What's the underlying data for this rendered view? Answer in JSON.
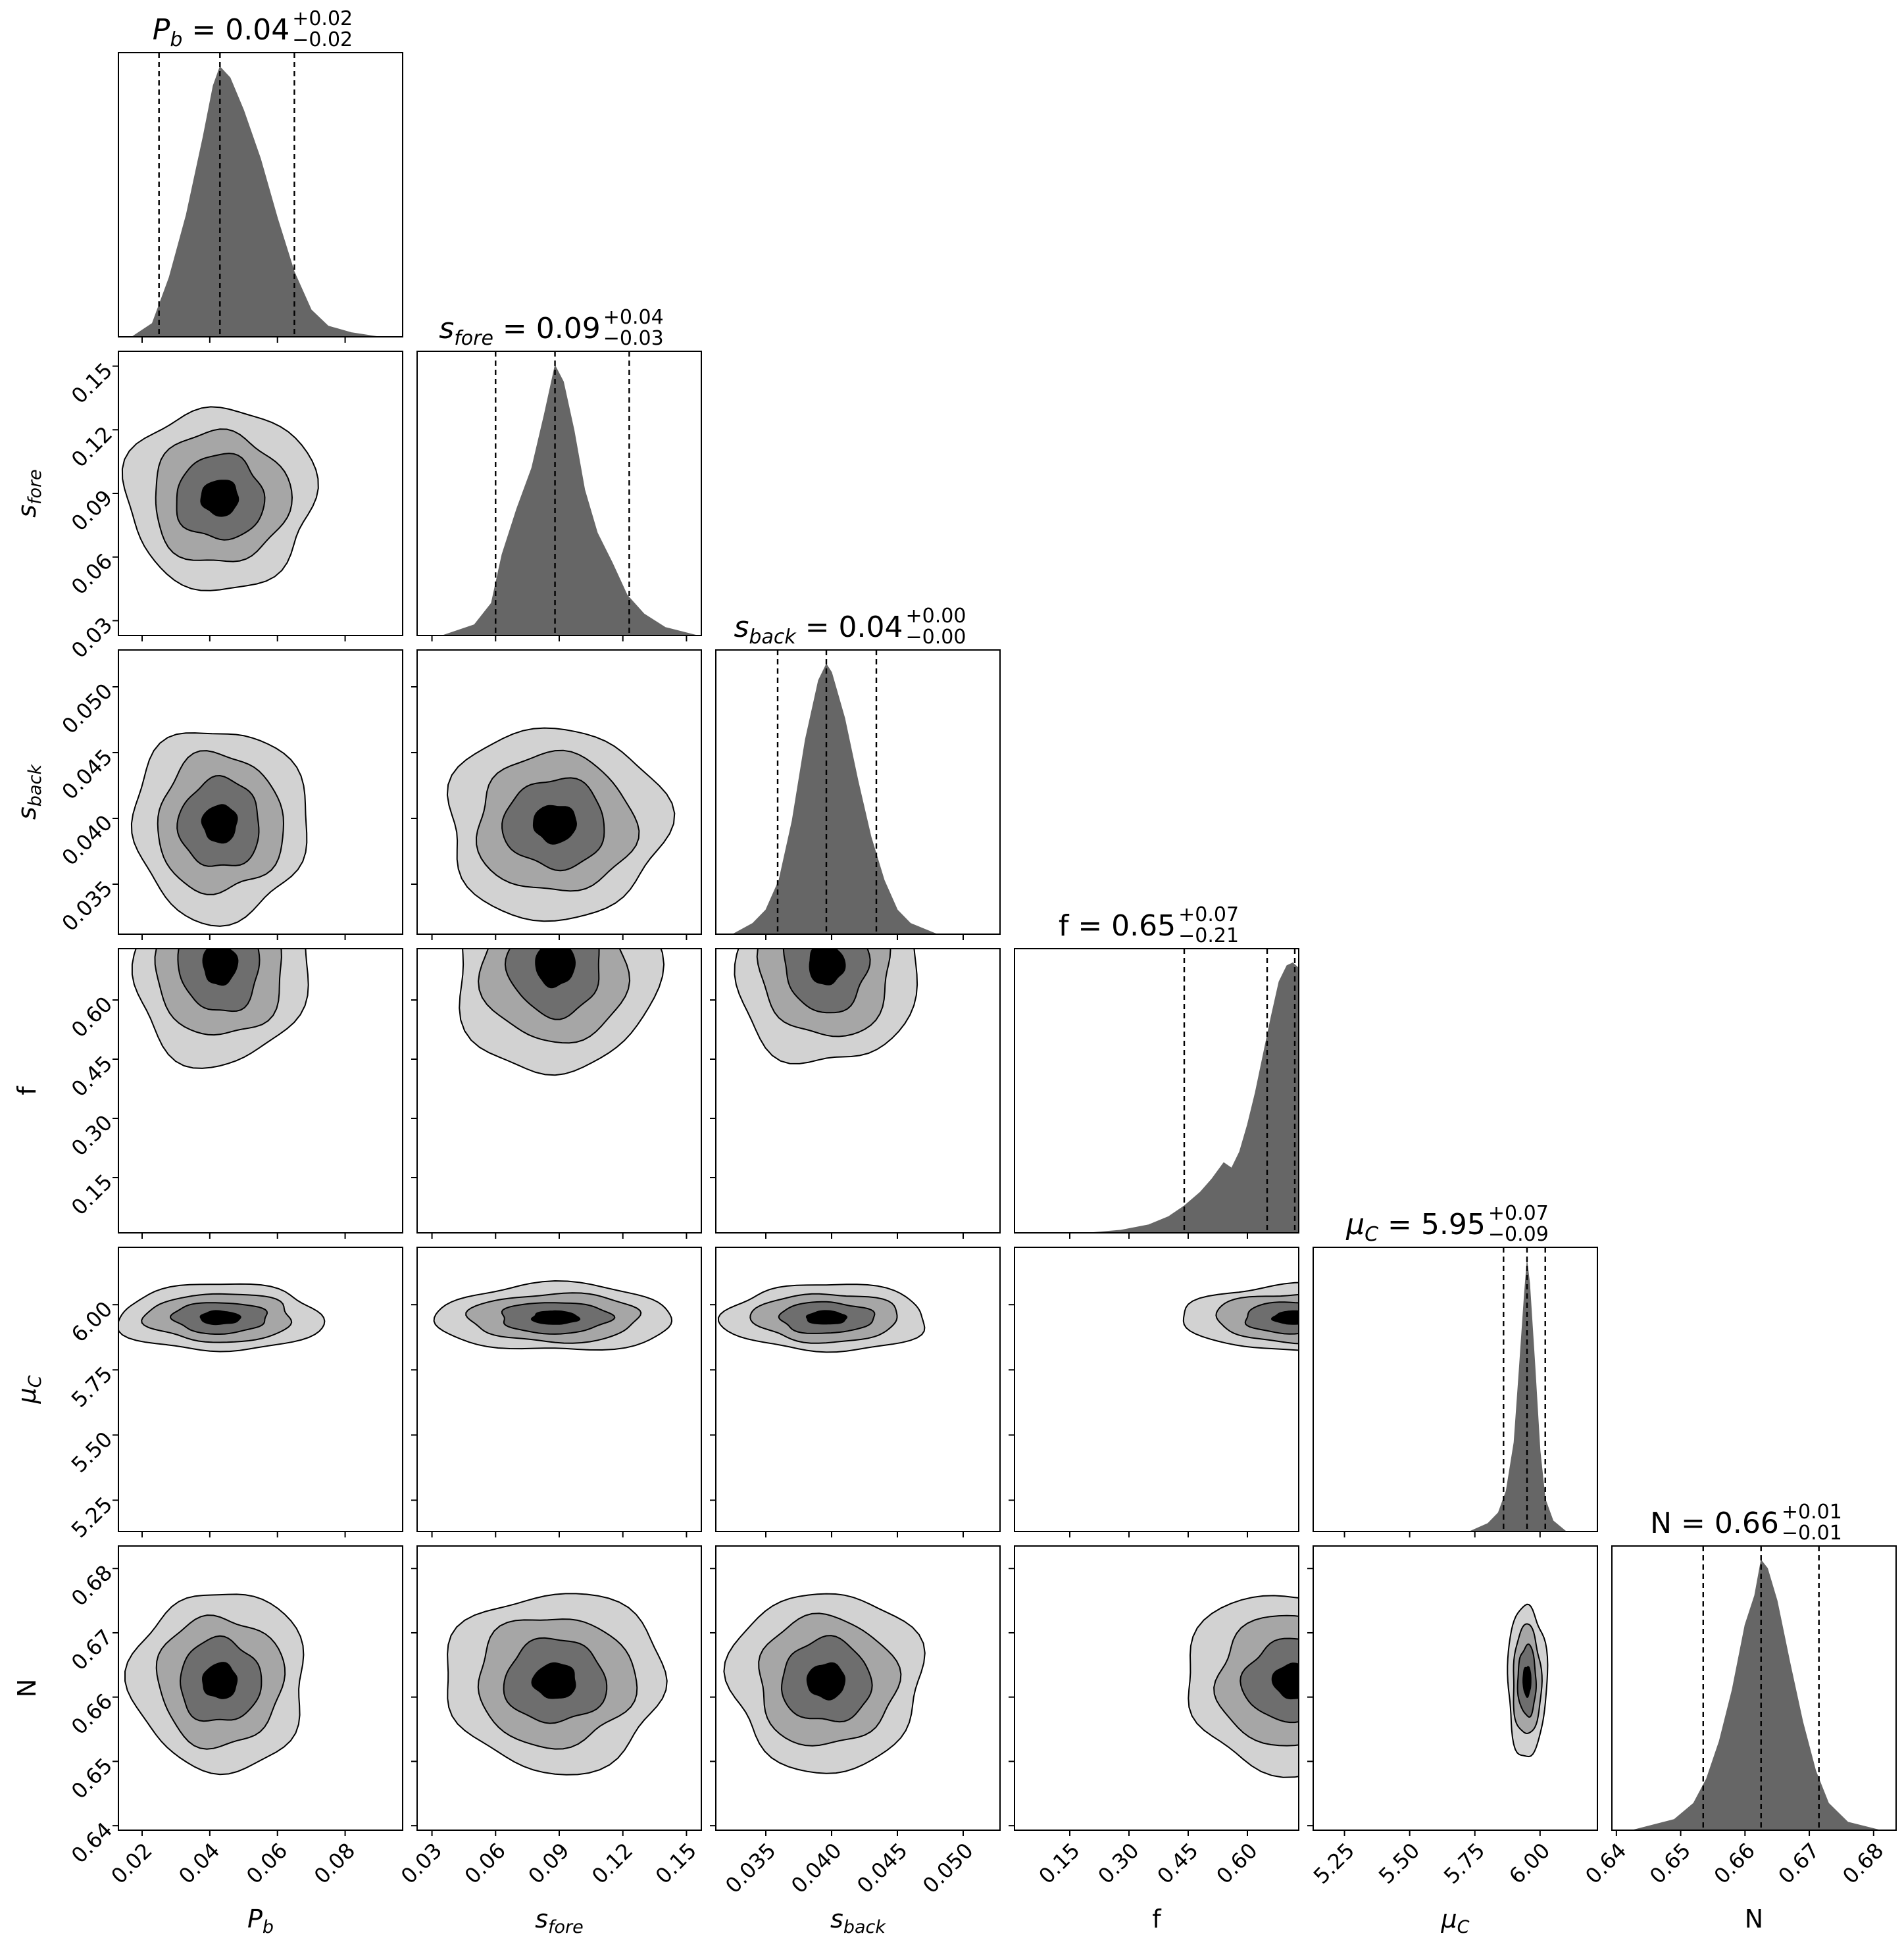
{
  "chart_data": {
    "type": "corner",
    "parameters": [
      {
        "key": "Pb",
        "label": "P",
        "sub": "b",
        "italic": true,
        "median": 0.043,
        "lo": 0.025,
        "hi": 0.065,
        "range": [
          0.013,
          0.097
        ],
        "ticks": [
          0.02,
          0.04,
          0.06,
          0.08
        ],
        "tick_labels": [
          "0.02",
          "0.04",
          "0.06",
          "0.08"
        ],
        "title_value": "0.04",
        "title_plus": "+0.02",
        "title_minus": "−0.02"
      },
      {
        "key": "sfore",
        "label": "s",
        "sub": "fore",
        "italic": true,
        "median": 0.088,
        "lo": 0.06,
        "hi": 0.123,
        "range": [
          0.023,
          0.157
        ],
        "ticks": [
          0.03,
          0.06,
          0.09,
          0.12,
          0.15
        ],
        "tick_labels": [
          "0.03",
          "0.06",
          "0.09",
          "0.12",
          "0.15"
        ],
        "title_value": "0.09",
        "title_plus": "+0.04",
        "title_minus": "−0.03"
      },
      {
        "key": "sback",
        "label": "s",
        "sub": "back",
        "italic": true,
        "median": 0.0396,
        "lo": 0.0359,
        "hi": 0.0434,
        "range": [
          0.0312,
          0.0528
        ],
        "ticks": [
          0.035,
          0.04,
          0.045,
          0.05
        ],
        "tick_labels": [
          "0.035",
          "0.040",
          "0.045",
          "0.050"
        ],
        "title_value": "0.04",
        "title_plus": "+0.00",
        "title_minus": "−0.00"
      },
      {
        "key": "f",
        "label": "f",
        "sub": "",
        "italic": false,
        "median": 0.65,
        "lo": 0.44,
        "hi": 0.72,
        "range": [
          0.01,
          0.73
        ],
        "ticks": [
          0.15,
          0.3,
          0.45,
          0.6
        ],
        "tick_labels": [
          "0.15",
          "0.30",
          "0.45",
          "0.60"
        ],
        "title_value": "0.65",
        "title_plus": "+0.07",
        "title_minus": "−0.21"
      },
      {
        "key": "muC",
        "label": "μ",
        "sub": "C",
        "italic": true,
        "median": 5.95,
        "lo": 5.86,
        "hi": 6.02,
        "range": [
          5.13,
          6.22
        ],
        "ticks": [
          5.25,
          5.5,
          5.75,
          6.0
        ],
        "tick_labels": [
          "5.25",
          "5.50",
          "5.75",
          "6.00"
        ],
        "title_value": "5.95",
        "title_plus": "+0.07",
        "title_minus": "−0.09"
      },
      {
        "key": "N",
        "label": "N",
        "sub": "",
        "italic": false,
        "median": 0.6625,
        "lo": 0.6535,
        "hi": 0.6715,
        "range": [
          0.6393,
          0.6835
        ],
        "ticks": [
          0.64,
          0.65,
          0.66,
          0.67,
          0.68
        ],
        "tick_labels": [
          "0.64",
          "0.65",
          "0.66",
          "0.67",
          "0.68"
        ],
        "title_value": "0.66",
        "title_plus": "+0.01",
        "title_minus": "−0.01"
      }
    ],
    "histograms": [
      {
        "param": "Pb",
        "x": [
          0.017,
          0.023,
          0.028,
          0.033,
          0.038,
          0.041,
          0.043,
          0.046,
          0.05,
          0.055,
          0.06,
          0.065,
          0.07,
          0.075,
          0.082,
          0.09
        ],
        "density": [
          0.0,
          0.05,
          0.22,
          0.45,
          0.74,
          0.93,
          1.0,
          0.96,
          0.84,
          0.66,
          0.44,
          0.24,
          0.1,
          0.04,
          0.015,
          0.0
        ]
      },
      {
        "param": "sfore",
        "x": [
          0.035,
          0.05,
          0.058,
          0.063,
          0.07,
          0.077,
          0.083,
          0.088,
          0.092,
          0.097,
          0.102,
          0.108,
          0.115,
          0.122,
          0.13,
          0.14,
          0.155
        ],
        "density": [
          0.0,
          0.04,
          0.12,
          0.3,
          0.47,
          0.62,
          0.82,
          1.0,
          0.94,
          0.76,
          0.54,
          0.38,
          0.27,
          0.15,
          0.08,
          0.03,
          0.0
        ]
      },
      {
        "param": "sback",
        "x": [
          0.0325,
          0.034,
          0.035,
          0.036,
          0.037,
          0.038,
          0.039,
          0.0396,
          0.04,
          0.041,
          0.042,
          0.043,
          0.044,
          0.045,
          0.046,
          0.048
        ],
        "density": [
          0.0,
          0.04,
          0.09,
          0.2,
          0.42,
          0.72,
          0.94,
          1.0,
          0.97,
          0.8,
          0.57,
          0.36,
          0.2,
          0.09,
          0.04,
          0.0
        ]
      },
      {
        "param": "f",
        "x": [
          0.2,
          0.28,
          0.35,
          0.4,
          0.44,
          0.48,
          0.51,
          0.54,
          0.56,
          0.58,
          0.6,
          0.62,
          0.64,
          0.66,
          0.68,
          0.7,
          0.715,
          0.73
        ],
        "density": [
          0.0,
          0.01,
          0.03,
          0.06,
          0.1,
          0.15,
          0.2,
          0.26,
          0.24,
          0.3,
          0.4,
          0.52,
          0.66,
          0.8,
          0.93,
          0.99,
          1.0,
          0.98
        ]
      },
      {
        "param": "muC",
        "x": [
          5.73,
          5.8,
          5.84,
          5.87,
          5.9,
          5.92,
          5.94,
          5.95,
          5.96,
          5.98,
          6.0,
          6.02,
          6.05,
          6.1
        ],
        "density": [
          0.0,
          0.03,
          0.07,
          0.15,
          0.33,
          0.6,
          0.88,
          1.0,
          0.92,
          0.62,
          0.3,
          0.12,
          0.04,
          0.0
        ]
      },
      {
        "param": "N",
        "x": [
          0.6425,
          0.649,
          0.652,
          0.654,
          0.656,
          0.658,
          0.66,
          0.6615,
          0.6625,
          0.6635,
          0.665,
          0.667,
          0.669,
          0.671,
          0.673,
          0.676,
          0.681
        ],
        "density": [
          0.0,
          0.04,
          0.1,
          0.19,
          0.33,
          0.52,
          0.76,
          0.87,
          1.0,
          0.97,
          0.85,
          0.62,
          0.4,
          0.22,
          0.1,
          0.03,
          0.0
        ]
      }
    ],
    "contour_levels": [
      "outer",
      "second",
      "third",
      "peak"
    ],
    "contour_fill_colors": [
      "#d2d2d2",
      "#a6a6a6",
      "#6e6e6e",
      "#000000"
    ],
    "histogram_color": "#666666",
    "contours": [
      {
        "row": "sfore",
        "col": "Pb",
        "center": [
          0.043,
          0.088
        ],
        "spread": [
          0.013,
          0.02
        ],
        "clip_top": false
      },
      {
        "row": "sback",
        "col": "Pb",
        "center": [
          0.043,
          0.0396
        ],
        "spread": [
          0.012,
          0.0034
        ],
        "clip_top": false
      },
      {
        "row": "sback",
        "col": "sfore",
        "center": [
          0.088,
          0.0396
        ],
        "spread": [
          0.024,
          0.0034
        ],
        "clip_top": false
      },
      {
        "row": "f",
        "col": "Pb",
        "center": [
          0.043,
          0.69
        ],
        "spread": [
          0.012,
          0.12
        ],
        "clip_top": true
      },
      {
        "row": "f",
        "col": "sfore",
        "center": [
          0.088,
          0.69
        ],
        "spread": [
          0.022,
          0.13
        ],
        "clip_top": true
      },
      {
        "row": "f",
        "col": "sback",
        "center": [
          0.0396,
          0.69
        ],
        "spread": [
          0.0032,
          0.12
        ],
        "clip_top": true
      },
      {
        "row": "muC",
        "col": "Pb",
        "center": [
          0.043,
          5.95
        ],
        "spread": [
          0.014,
          0.06
        ],
        "clip_top": false
      },
      {
        "row": "muC",
        "col": "sfore",
        "center": [
          0.088,
          5.95
        ],
        "spread": [
          0.026,
          0.06
        ],
        "clip_top": false
      },
      {
        "row": "muC",
        "col": "sback",
        "center": [
          0.0396,
          5.95
        ],
        "spread": [
          0.0036,
          0.06
        ],
        "clip_top": false
      },
      {
        "row": "muC",
        "col": "f",
        "center": [
          0.72,
          5.95
        ],
        "spread": [
          0.13,
          0.06
        ],
        "clip_top": false
      },
      {
        "row": "N",
        "col": "Pb",
        "center": [
          0.043,
          0.6625
        ],
        "spread": [
          0.012,
          0.0065
        ],
        "clip_top": false
      },
      {
        "row": "N",
        "col": "sfore",
        "center": [
          0.088,
          0.6625
        ],
        "spread": [
          0.024,
          0.0065
        ],
        "clip_top": false
      },
      {
        "row": "N",
        "col": "sback",
        "center": [
          0.0396,
          0.6625
        ],
        "spread": [
          0.0034,
          0.0065
        ],
        "clip_top": false
      },
      {
        "row": "N",
        "col": "f",
        "center": [
          0.72,
          0.6625
        ],
        "spread": [
          0.13,
          0.0065
        ],
        "clip_top": false
      },
      {
        "row": "N",
        "col": "muC",
        "center": [
          5.95,
          0.6625
        ],
        "spread": [
          0.035,
          0.0055
        ],
        "clip_top": false
      }
    ],
    "grid": false,
    "legend": "none"
  }
}
